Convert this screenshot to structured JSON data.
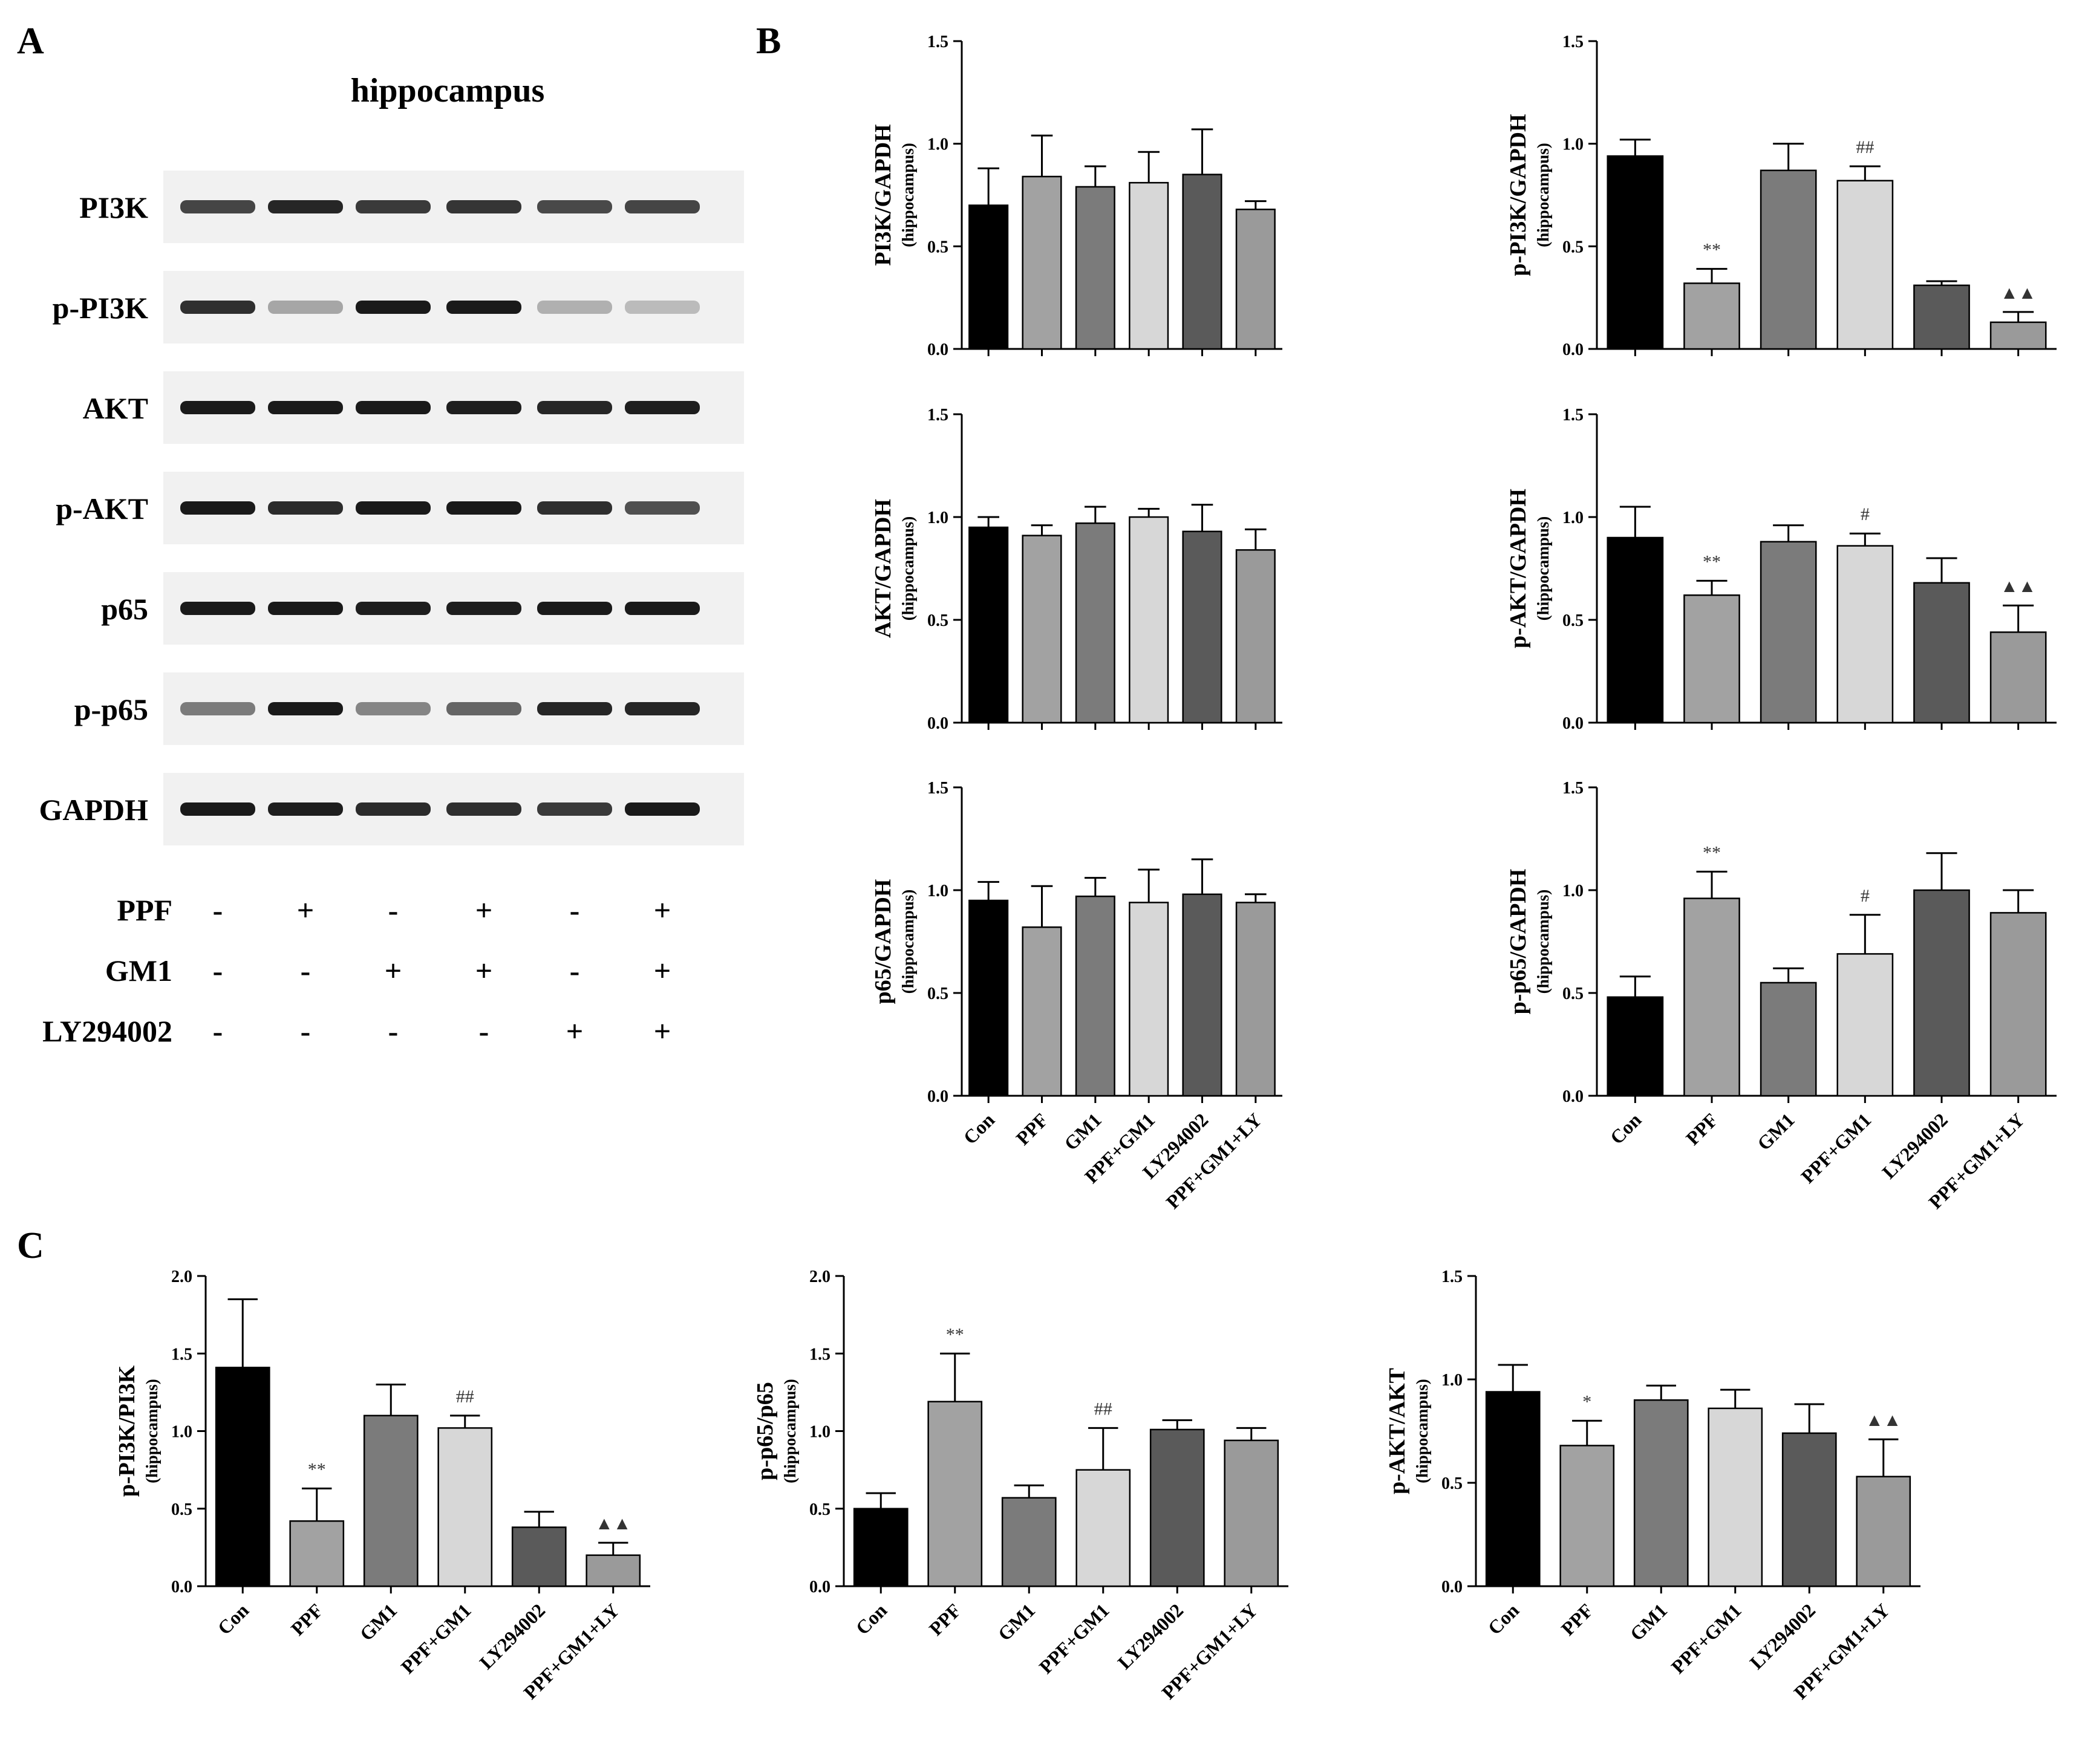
{
  "figure": {
    "panel_labels": [
      "A",
      "B",
      "C"
    ],
    "blot": {
      "title": "hippocampus",
      "bands": [
        "PI3K",
        "p-PI3K",
        "AKT",
        "p-AKT",
        "p65",
        "p-p65",
        "GAPDH"
      ],
      "band_intensity": [
        [
          0.8,
          0.95,
          0.85,
          0.88,
          0.78,
          0.8
        ],
        [
          0.9,
          0.35,
          1.0,
          1.0,
          0.3,
          0.25
        ],
        [
          1.0,
          1.0,
          1.0,
          0.98,
          0.95,
          0.98
        ],
        [
          1.0,
          0.92,
          1.0,
          1.0,
          0.9,
          0.75
        ],
        [
          1.0,
          1.0,
          0.98,
          0.98,
          1.0,
          1.0
        ],
        [
          0.55,
          1.0,
          0.5,
          0.65,
          0.95,
          0.95
        ],
        [
          1.0,
          0.98,
          0.92,
          0.9,
          0.85,
          1.0
        ]
      ],
      "treatments": [
        {
          "name": "PPF",
          "signs": [
            "-",
            "+",
            "-",
            "+",
            "-",
            "+"
          ]
        },
        {
          "name": "GM1",
          "signs": [
            "-",
            "-",
            "+",
            "+",
            "-",
            "+"
          ]
        },
        {
          "name": "LY294002",
          "signs": [
            "-",
            "-",
            "-",
            "-",
            "+",
            "+"
          ]
        }
      ]
    }
  },
  "chart_data": [
    {
      "id": "B1",
      "type": "bar",
      "ylabel": "PI3K/GAPDH",
      "ysub": "(hippocampus)",
      "categories": [
        "Con",
        "PPF",
        "GM1",
        "PPF+GM1",
        "LY294002",
        "PPF+GM1+LY"
      ],
      "values": [
        0.7,
        0.84,
        0.79,
        0.81,
        0.85,
        0.68
      ],
      "errors": [
        0.18,
        0.2,
        0.1,
        0.15,
        0.22,
        0.04
      ],
      "annotations": [
        "",
        "",
        "",
        "",
        "",
        ""
      ],
      "ylim": [
        0,
        1.5
      ],
      "yticks": [
        "0.0",
        "0.5",
        "1.0",
        "1.5"
      ],
      "show_categories": false
    },
    {
      "id": "B2",
      "type": "bar",
      "ylabel": "p-PI3K/GAPDH",
      "ysub": "(hippocampus)",
      "categories": [
        "Con",
        "PPF",
        "GM1",
        "PPF+GM1",
        "LY294002",
        "PPF+GM1+LY"
      ],
      "values": [
        0.94,
        0.32,
        0.87,
        0.82,
        0.31,
        0.13
      ],
      "errors": [
        0.08,
        0.07,
        0.13,
        0.07,
        0.02,
        0.05
      ],
      "annotations": [
        "",
        "**",
        "",
        "##",
        "",
        "▲▲"
      ],
      "ylim": [
        0,
        1.5
      ],
      "yticks": [
        "0.0",
        "0.5",
        "1.0",
        "1.5"
      ],
      "show_categories": false
    },
    {
      "id": "B3",
      "type": "bar",
      "ylabel": "AKT/GAPDH",
      "ysub": "(hippocampus)",
      "categories": [
        "Con",
        "PPF",
        "GM1",
        "PPF+GM1",
        "LY294002",
        "PPF+GM1+LY"
      ],
      "values": [
        0.95,
        0.91,
        0.97,
        1.0,
        0.93,
        0.84
      ],
      "errors": [
        0.05,
        0.05,
        0.08,
        0.04,
        0.13,
        0.1
      ],
      "annotations": [
        "",
        "",
        "",
        "",
        "",
        ""
      ],
      "ylim": [
        0,
        1.5
      ],
      "yticks": [
        "0.0",
        "0.5",
        "1.0",
        "1.5"
      ],
      "show_categories": false
    },
    {
      "id": "B4",
      "type": "bar",
      "ylabel": "p-AKT/GAPDH",
      "ysub": "(hippocampus)",
      "categories": [
        "Con",
        "PPF",
        "GM1",
        "PPF+GM1",
        "LY294002",
        "PPF+GM1+LY"
      ],
      "values": [
        0.9,
        0.62,
        0.88,
        0.86,
        0.68,
        0.44
      ],
      "errors": [
        0.15,
        0.07,
        0.08,
        0.06,
        0.12,
        0.13
      ],
      "annotations": [
        "",
        "**",
        "",
        "#",
        "",
        "▲▲"
      ],
      "ylim": [
        0,
        1.5
      ],
      "yticks": [
        "0.0",
        "0.5",
        "1.0",
        "1.5"
      ],
      "show_categories": false
    },
    {
      "id": "B5",
      "type": "bar",
      "ylabel": "p65/GAPDH",
      "ysub": "(hippocampus)",
      "categories": [
        "Con",
        "PPF",
        "GM1",
        "PPF+GM1",
        "LY294002",
        "PPF+GM1+LY"
      ],
      "values": [
        0.95,
        0.82,
        0.97,
        0.94,
        0.98,
        0.94
      ],
      "errors": [
        0.09,
        0.2,
        0.09,
        0.16,
        0.17,
        0.04
      ],
      "annotations": [
        "",
        "",
        "",
        "",
        "",
        ""
      ],
      "ylim": [
        0,
        1.5
      ],
      "yticks": [
        "0.0",
        "0.5",
        "1.0",
        "1.5"
      ],
      "show_categories": true
    },
    {
      "id": "B6",
      "type": "bar",
      "ylabel": "p-p65/GAPDH",
      "ysub": "(hippocampus)",
      "categories": [
        "Con",
        "PPF",
        "GM1",
        "PPF+GM1",
        "LY294002",
        "PPF+GM1+LY"
      ],
      "values": [
        0.48,
        0.96,
        0.55,
        0.69,
        1.0,
        0.89
      ],
      "errors": [
        0.1,
        0.13,
        0.07,
        0.19,
        0.18,
        0.11
      ],
      "annotations": [
        "",
        "**",
        "",
        "#",
        "",
        ""
      ],
      "ylim": [
        0,
        1.5
      ],
      "yticks": [
        "0.0",
        "0.5",
        "1.0",
        "1.5"
      ],
      "show_categories": true
    },
    {
      "id": "C1",
      "type": "bar",
      "ylabel": "p-PI3K/PI3K",
      "ysub": "(hippocampus)",
      "categories": [
        "Con",
        "PPF",
        "GM1",
        "PPF+GM1",
        "LY294002",
        "PPF+GM1+LY"
      ],
      "values": [
        1.41,
        0.42,
        1.1,
        1.02,
        0.38,
        0.2
      ],
      "errors": [
        0.44,
        0.21,
        0.2,
        0.08,
        0.1,
        0.08
      ],
      "annotations": [
        "",
        "**",
        "",
        "##",
        "",
        "▲▲"
      ],
      "ylim": [
        0,
        2.0
      ],
      "yticks": [
        "0.0",
        "0.5",
        "1.0",
        "1.5",
        "2.0"
      ],
      "show_categories": true
    },
    {
      "id": "C2",
      "type": "bar",
      "ylabel": "p-p65/p65",
      "ysub": "(hippocampus)",
      "categories": [
        "Con",
        "PPF",
        "GM1",
        "PPF+GM1",
        "LY294002",
        "PPF+GM1+LY"
      ],
      "values": [
        0.5,
        1.19,
        0.57,
        0.75,
        1.01,
        0.94
      ],
      "errors": [
        0.1,
        0.31,
        0.08,
        0.27,
        0.06,
        0.08
      ],
      "annotations": [
        "",
        "**",
        "",
        "##",
        "",
        ""
      ],
      "ylim": [
        0,
        2.0
      ],
      "yticks": [
        "0.0",
        "0.5",
        "1.0",
        "1.5",
        "2.0"
      ],
      "show_categories": true
    },
    {
      "id": "C3",
      "type": "bar",
      "ylabel": "p-AKT/AKT",
      "ysub": "(hippocampus)",
      "categories": [
        "Con",
        "PPF",
        "GM1",
        "PPF+GM1",
        "LY294002",
        "PPF+GM1+LY"
      ],
      "values": [
        0.94,
        0.68,
        0.9,
        0.86,
        0.74,
        0.53
      ],
      "errors": [
        0.13,
        0.12,
        0.07,
        0.09,
        0.14,
        0.18
      ],
      "annotations": [
        "",
        "*",
        "",
        "",
        "",
        "▲▲"
      ],
      "ylim": [
        0,
        1.5
      ],
      "yticks": [
        "0.0",
        "0.5",
        "1.0",
        "1.5"
      ],
      "show_categories": true
    }
  ],
  "colors": {
    "bars": [
      "#000000",
      "#a2a2a2",
      "#7b7b7b",
      "#d7d7d7",
      "#5a5a5a",
      "#9a9a9a"
    ],
    "axis": "#000000",
    "annotation": "#333333"
  }
}
